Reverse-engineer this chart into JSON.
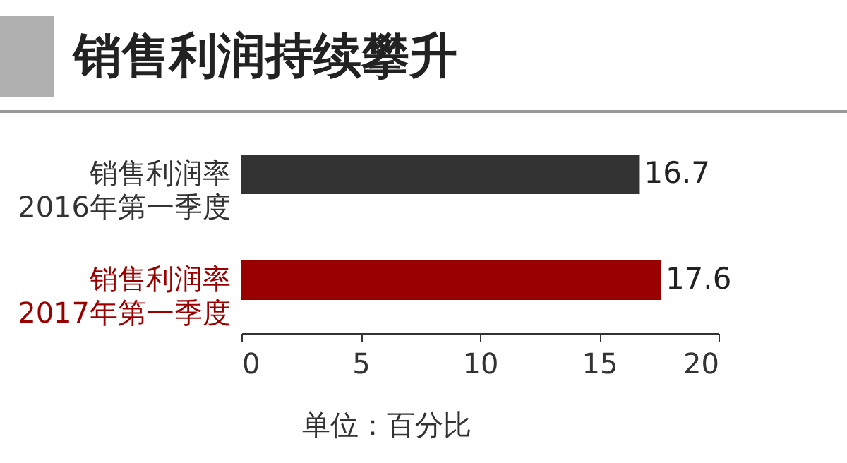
{
  "chart_data": {
    "type": "bar",
    "orientation": "horizontal",
    "title": "销售利润持续攀升",
    "categories": [
      "销售利润率\n2016年第一季度",
      "销售利润率\n2017年第一季度"
    ],
    "values": [
      16.7,
      17.6
    ],
    "colors": [
      "#333333",
      "#990000"
    ],
    "xlim": [
      0,
      20
    ],
    "xticks": [
      0,
      5,
      10,
      15,
      20
    ],
    "data_labels": true,
    "grid": false,
    "legend": false,
    "annotations": [
      "单位：百分比"
    ]
  }
}
